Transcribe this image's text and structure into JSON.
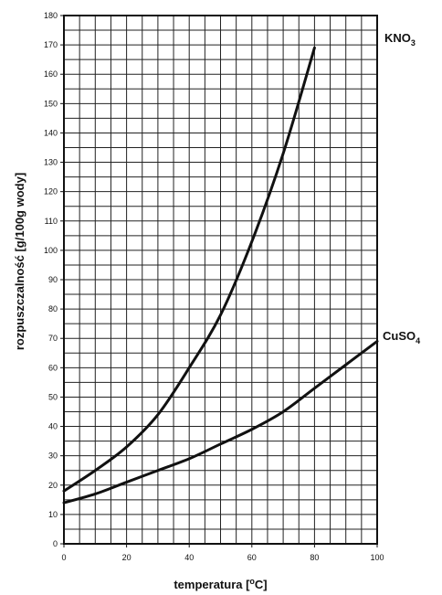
{
  "chart_data": {
    "type": "line",
    "title": "",
    "xlabel_text": "temperatura [",
    "xlabel_sup": "o",
    "xlabel_tail": "C]",
    "ylabel": "rozpuszczalność [g/100g wody]",
    "xlim": [
      0,
      100
    ],
    "ylim": [
      0,
      180
    ],
    "x_ticks": [
      0,
      20,
      40,
      60,
      80,
      100
    ],
    "y_ticks": [
      0,
      10,
      20,
      30,
      40,
      50,
      60,
      70,
      80,
      90,
      100,
      110,
      120,
      130,
      140,
      150,
      160,
      170,
      180
    ],
    "grid": {
      "x_step": 5,
      "y_step": 5
    },
    "legend": "labels at line ends (right)",
    "series": [
      {
        "name_main": "KNO",
        "name_sub": "3",
        "color": "#111111",
        "x": [
          0,
          10,
          20,
          30,
          40,
          50,
          60,
          70,
          80
        ],
        "y": [
          18,
          25,
          33,
          44,
          60,
          78,
          103,
          133,
          169
        ]
      },
      {
        "name_main": "CuSO",
        "name_sub": "4",
        "color": "#111111",
        "x": [
          0,
          10,
          20,
          30,
          40,
          50,
          60,
          70,
          80,
          90,
          100
        ],
        "y": [
          14,
          17,
          21,
          25,
          29,
          34,
          39,
          45,
          53,
          61,
          69
        ]
      }
    ]
  }
}
